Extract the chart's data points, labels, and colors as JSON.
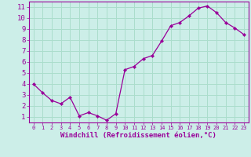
{
  "x": [
    0,
    1,
    2,
    3,
    4,
    5,
    6,
    7,
    8,
    9,
    10,
    11,
    12,
    13,
    14,
    15,
    16,
    17,
    18,
    19,
    20,
    21,
    22,
    23
  ],
  "y": [
    4.0,
    3.2,
    2.5,
    2.2,
    2.8,
    1.1,
    1.4,
    1.1,
    0.7,
    1.3,
    5.3,
    5.6,
    6.3,
    6.6,
    7.9,
    9.3,
    9.6,
    10.2,
    10.9,
    11.1,
    10.5,
    9.6,
    9.1,
    8.5
  ],
  "line_color": "#990099",
  "marker": "D",
  "markersize": 2.2,
  "linewidth": 0.9,
  "background_color": "#cceee8",
  "grid_color": "#aaddcc",
  "xlabel": "Windchill (Refroidissement éolien,°C)",
  "xlabel_color": "#990099",
  "xlabel_fontsize": 6.5,
  "tick_color": "#990099",
  "ytick_fontsize": 6.5,
  "xtick_fontsize": 5.0,
  "ylim": [
    0.5,
    11.5
  ],
  "xlim": [
    -0.5,
    23.5
  ],
  "yticks": [
    1,
    2,
    3,
    4,
    5,
    6,
    7,
    8,
    9,
    10,
    11
  ],
  "xticks": [
    0,
    1,
    2,
    3,
    4,
    5,
    6,
    7,
    8,
    9,
    10,
    11,
    12,
    13,
    14,
    15,
    16,
    17,
    18,
    19,
    20,
    21,
    22,
    23
  ]
}
